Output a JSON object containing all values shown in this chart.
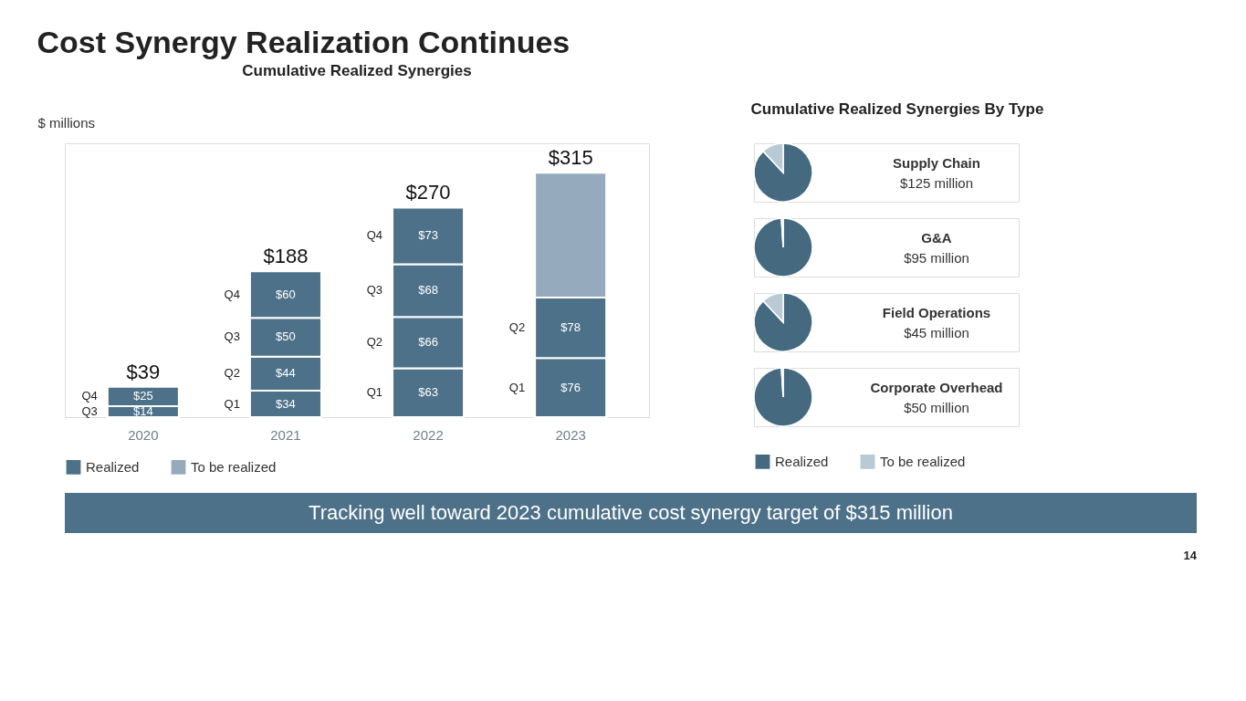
{
  "chart_data": [
    {
      "type": "bar",
      "title": "Cost Synergy Realization Continues",
      "subtitle": "Cumulative Realized Synergies",
      "ylabel": "$ millions",
      "stacked": true,
      "legend": "bottom",
      "grid": false,
      "categories": [
        "2020",
        "2021",
        "2022",
        "2023"
      ],
      "series": [
        {
          "name": "Realized",
          "color": "#4d7189",
          "values": [
            null,
            34,
            63,
            76
          ],
          "value_labels": [
            null,
            "$34",
            "$63",
            "$76"
          ]
        },
        {
          "color": "#4d7189",
          "values": [
            null,
            44,
            66,
            78
          ],
          "value_labels": [
            null,
            "$44",
            "$66",
            "$78"
          ]
        },
        {
          "color": "#4d7189",
          "values": [
            14,
            50,
            68,
            null
          ],
          "value_labels": [
            "$14",
            "$50",
            "$68",
            null
          ]
        },
        {
          "color": "#4d7189",
          "values": [
            25,
            60,
            73,
            null
          ],
          "value_labels": [
            "$25",
            "$60",
            "$73",
            null
          ]
        },
        {
          "name": "To be realized",
          "color": "#95abbd",
          "values": [
            null,
            null,
            null,
            161
          ]
        }
      ],
      "totals": [
        "$39",
        "$188",
        "$270",
        "$315"
      ],
      "annotations": [
        "Q3",
        "Q4",
        "Q1",
        "Q2",
        "Q3",
        "Q4",
        "Q1",
        "Q2",
        "Q3",
        "Q4",
        "Q1",
        "Q2",
        "Tracking well toward 2023 cumulative cost synergy target of $315 million",
        "14"
      ]
    },
    {
      "type": "pie",
      "title": "Supply Chain",
      "subtitle": "$125 million",
      "categories": [
        "Realized",
        "To be realized"
      ],
      "values": [
        88,
        12
      ],
      "colors": [
        "#456a80",
        "#b9cad5"
      ],
      "legend": "bottom",
      "annotations": [
        "Cumulative Realized Synergies By Type"
      ]
    },
    {
      "type": "pie",
      "title": "G&A",
      "subtitle": "$95 million",
      "categories": [
        null,
        null
      ],
      "values": [
        99,
        1
      ],
      "colors": [
        "#456a80",
        "#b9cad5"
      ]
    },
    {
      "type": "pie",
      "title": "Field Operations",
      "subtitle": "$45 million",
      "categories": [
        null,
        null
      ],
      "values": [
        88,
        12
      ],
      "colors": [
        "#456a80",
        "#b9cad5"
      ]
    },
    {
      "type": "pie",
      "title": "Corporate Overhead",
      "subtitle": "$50 million",
      "categories": [
        null,
        null
      ],
      "values": [
        99,
        1
      ],
      "colors": [
        "#456a80",
        "#b9cad5"
      ]
    }
  ]
}
